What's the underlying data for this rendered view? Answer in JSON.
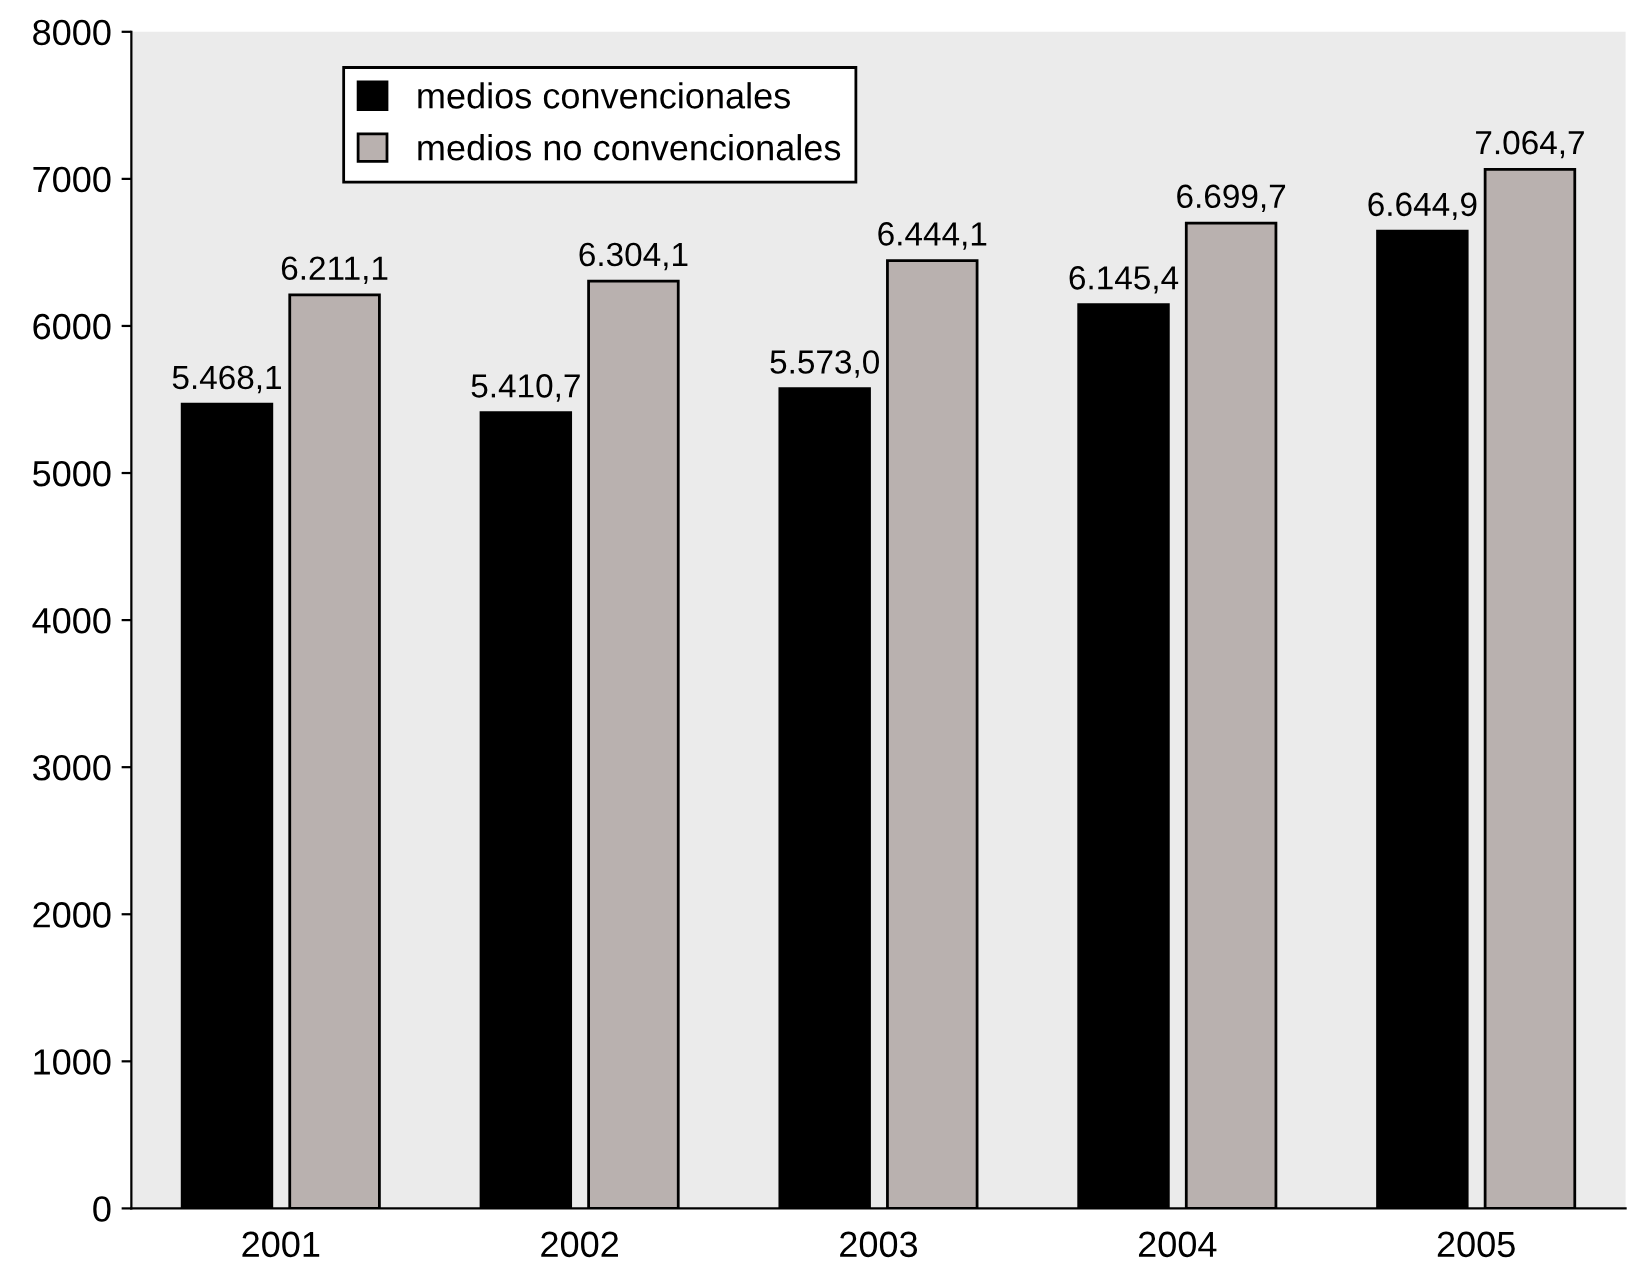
{
  "chart_data": {
    "type": "bar",
    "categories": [
      "2001",
      "2002",
      "2003",
      "2004",
      "2005"
    ],
    "series": [
      {
        "name": "medios convencionales",
        "color": "#000000",
        "values": [
          5468.1,
          5410.7,
          5573.0,
          6145.4,
          6644.9
        ],
        "value_labels": [
          "5.468,1",
          "5.410,7",
          "5.573,0",
          "6.145,4",
          "6.644,9"
        ]
      },
      {
        "name": "medios no convencionales",
        "color": "#b9b1af",
        "values": [
          6211.1,
          6304.1,
          6444.1,
          6699.7,
          7064.7
        ],
        "value_labels": [
          "6.211,1",
          "6.304,1",
          "6.444,1",
          "6.699,7",
          "7.064,7"
        ]
      }
    ],
    "ylim": [
      0,
      8000
    ],
    "yticks": [
      0,
      1000,
      2000,
      3000,
      4000,
      5000,
      6000,
      7000,
      8000
    ],
    "grid": false,
    "legend": "top left"
  }
}
